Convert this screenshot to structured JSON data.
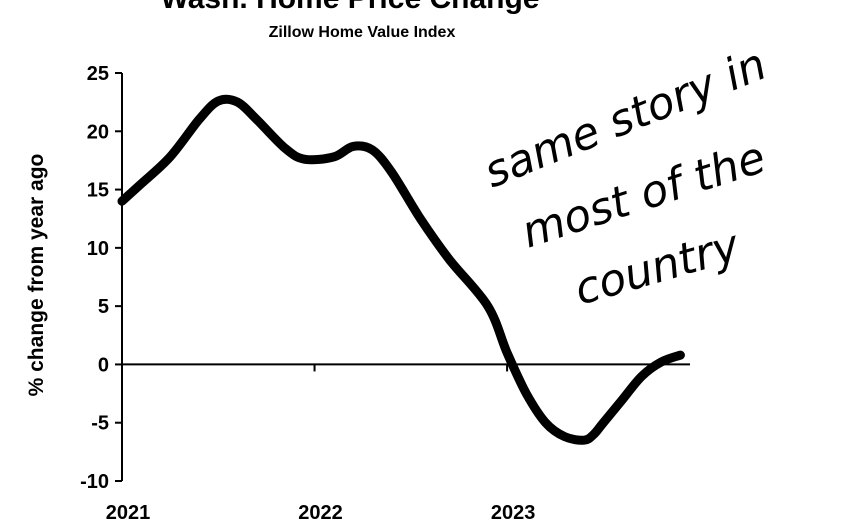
{
  "chart_data": {
    "type": "line",
    "title": "Wash. Home Price Change",
    "subtitle": "Zillow Home Value Index",
    "xlabel": "",
    "ylabel": "% change from year ago",
    "ylim": [
      -10,
      25
    ],
    "yticks": [
      25,
      20,
      15,
      10,
      5,
      0,
      -5,
      -10
    ],
    "ytick_labels": [
      "25",
      "20",
      "15",
      "10",
      "5",
      "0",
      "-5",
      "-10"
    ],
    "xlim": [
      2021,
      2023.95
    ],
    "xticks": [
      2021,
      2022,
      2023
    ],
    "xtick_labels": [
      "2021",
      "2022",
      "2023"
    ],
    "grid": false,
    "legend": "none",
    "series": [
      {
        "color": "#000000",
        "x": [
          2021.0,
          2021.1,
          2021.25,
          2021.4,
          2021.5,
          2021.6,
          2021.7,
          2021.85,
          2021.95,
          2022.1,
          2022.2,
          2022.3,
          2022.4,
          2022.55,
          2022.7,
          2022.9,
          2023.0,
          2023.1,
          2023.2,
          2023.3,
          2023.4,
          2023.45,
          2023.5,
          2023.6,
          2023.7,
          2023.8,
          2023.9
        ],
        "y": [
          14.0,
          15.5,
          17.8,
          21.0,
          22.6,
          22.5,
          21.0,
          18.5,
          17.6,
          17.8,
          18.7,
          18.4,
          16.5,
          12.5,
          9.0,
          5.0,
          1.0,
          -2.5,
          -5.0,
          -6.2,
          -6.5,
          -6.0,
          -5.0,
          -3.0,
          -1.0,
          0.2,
          0.8
        ]
      }
    ]
  },
  "annotation": {
    "lines": [
      "same story in",
      "most of the",
      "country"
    ]
  }
}
